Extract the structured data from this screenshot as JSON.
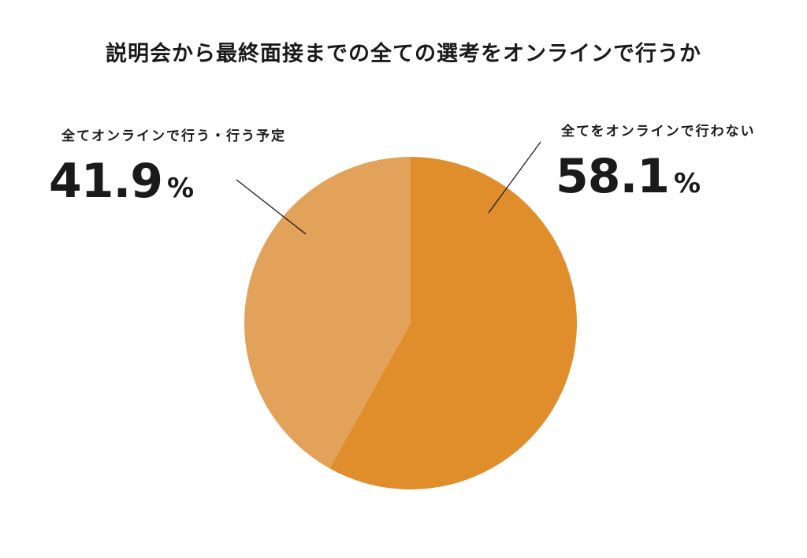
{
  "title": "説明会から最終面接までの全ての選考をオンラインで行うか",
  "chart_data": {
    "type": "pie",
    "title": "説明会から最終面接までの全ての選考をオンラインで行うか",
    "slices": [
      {
        "label": "全てをオンラインで行わない",
        "value": 58.1,
        "display": "58.1",
        "unit": "%",
        "color": "#E08E2C"
      },
      {
        "label": "全てオンラインで行う・行う予定",
        "value": 41.9,
        "display": "41.9",
        "unit": "%",
        "color": "#E2A25A"
      }
    ]
  }
}
